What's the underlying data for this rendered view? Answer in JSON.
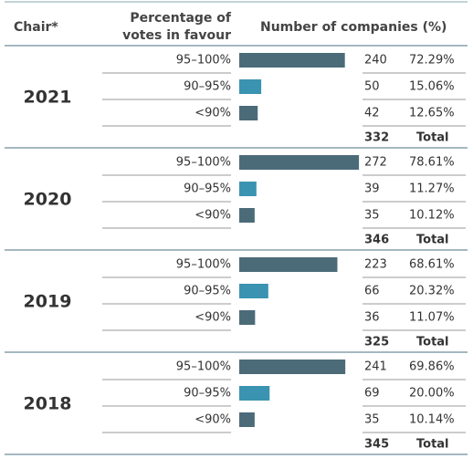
{
  "header": {
    "chair": "Chair*",
    "votes": [
      "Percentage of",
      "votes in favour"
    ],
    "companies": "Number of companies (%)"
  },
  "groups": [
    {
      "year": "2021",
      "rows": [
        {
          "band": "95–100%",
          "count": 240,
          "percent": "72.29%"
        },
        {
          "band": "90–95%",
          "count": 50,
          "percent": "15.06%"
        },
        {
          "band": "<90%",
          "count": 42,
          "percent": "12.65%"
        }
      ],
      "total": 332,
      "total_label": "Total"
    },
    {
      "year": "2020",
      "rows": [
        {
          "band": "95–100%",
          "count": 272,
          "percent": "78.61%"
        },
        {
          "band": "90–95%",
          "count": 39,
          "percent": "11.27%"
        },
        {
          "band": "<90%",
          "count": 35,
          "percent": "10.12%"
        }
      ],
      "total": 346,
      "total_label": "Total"
    },
    {
      "year": "2019",
      "rows": [
        {
          "band": "95–100%",
          "count": 223,
          "percent": "68.61%"
        },
        {
          "band": "90–95%",
          "count": 66,
          "percent": "20.32%"
        },
        {
          "band": "<90%",
          "count": 36,
          "percent": "11.07%"
        }
      ],
      "total": 325,
      "total_label": "Total"
    },
    {
      "year": "2018",
      "rows": [
        {
          "band": "95–100%",
          "count": 241,
          "percent": "69.86%"
        },
        {
          "band": "90–95%",
          "count": 69,
          "percent": "20.00%"
        },
        {
          "band": "<90%",
          "count": 35,
          "percent": "10.14%"
        }
      ],
      "total": 345,
      "total_label": "Total"
    }
  ]
}
